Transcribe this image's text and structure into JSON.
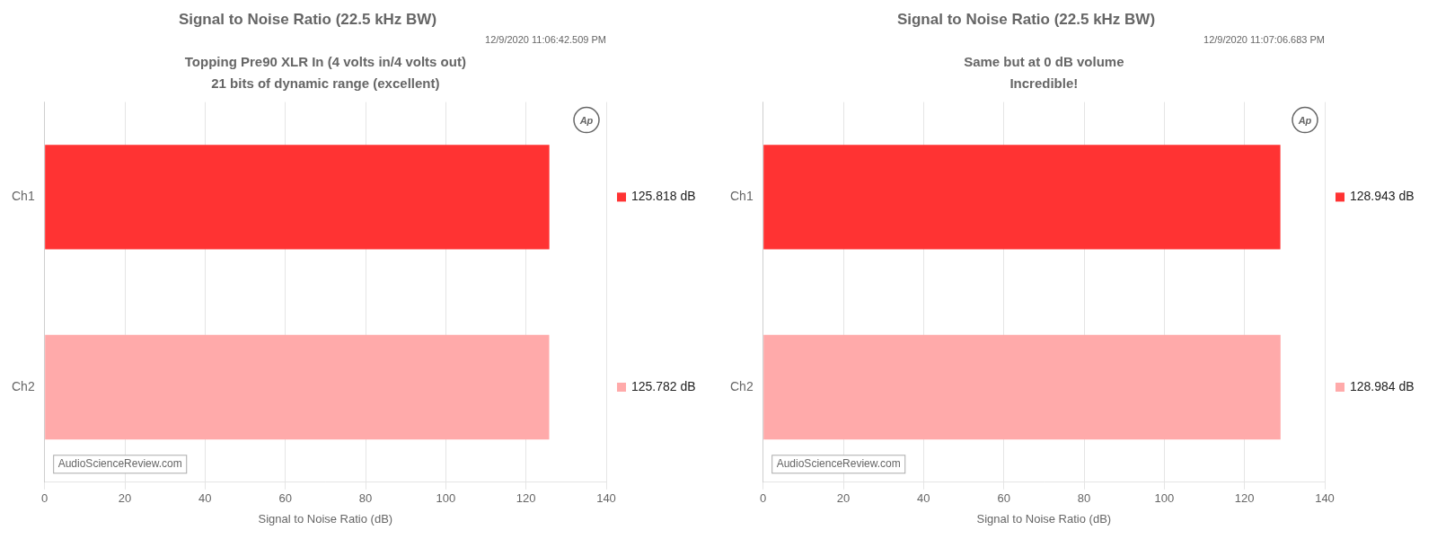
{
  "chart_data": [
    {
      "type": "bar",
      "orientation": "horizontal",
      "title": "Signal to Noise Ratio (22.5 kHz BW)",
      "subtitle": "12/9/2020 11:06:42.509 PM",
      "annotations": [
        "Topping Pre90 XLR In (4 volts in/4 volts out)",
        "21 bits of dynamic range (excellent)",
        "Ap",
        "AudioScienceReview.com"
      ],
      "categories": [
        "Ch1",
        "Ch2"
      ],
      "values": [
        125.818,
        125.782
      ],
      "value_labels": [
        "125.818 dB",
        "125.782 dB"
      ],
      "data_labels": true,
      "colors": [
        "#ff3333",
        "#ffaaaa"
      ],
      "xlim": [
        0,
        140
      ],
      "xticks": [
        0,
        20,
        40,
        60,
        80,
        100,
        120,
        140
      ],
      "xlabel": "Signal to Noise Ratio (dB)",
      "grid": true
    },
    {
      "type": "bar",
      "orientation": "horizontal",
      "title": "Signal to Noise Ratio (22.5 kHz BW)",
      "subtitle": "12/9/2020 11:07:06.683 PM",
      "annotations": [
        "Same but at 0 dB volume",
        "Incredible!",
        "Ap",
        "AudioScienceReview.com"
      ],
      "categories": [
        "Ch1",
        "Ch2"
      ],
      "values": [
        128.943,
        128.984
      ],
      "value_labels": [
        "128.943 dB",
        "128.984 dB"
      ],
      "data_labels": true,
      "colors": [
        "#ff3333",
        "#ffaaaa"
      ],
      "xlim": [
        0,
        140
      ],
      "xticks": [
        0,
        20,
        40,
        60,
        80,
        100,
        120,
        140
      ],
      "xlabel": "Signal to Noise Ratio (dB)",
      "grid": true
    }
  ]
}
